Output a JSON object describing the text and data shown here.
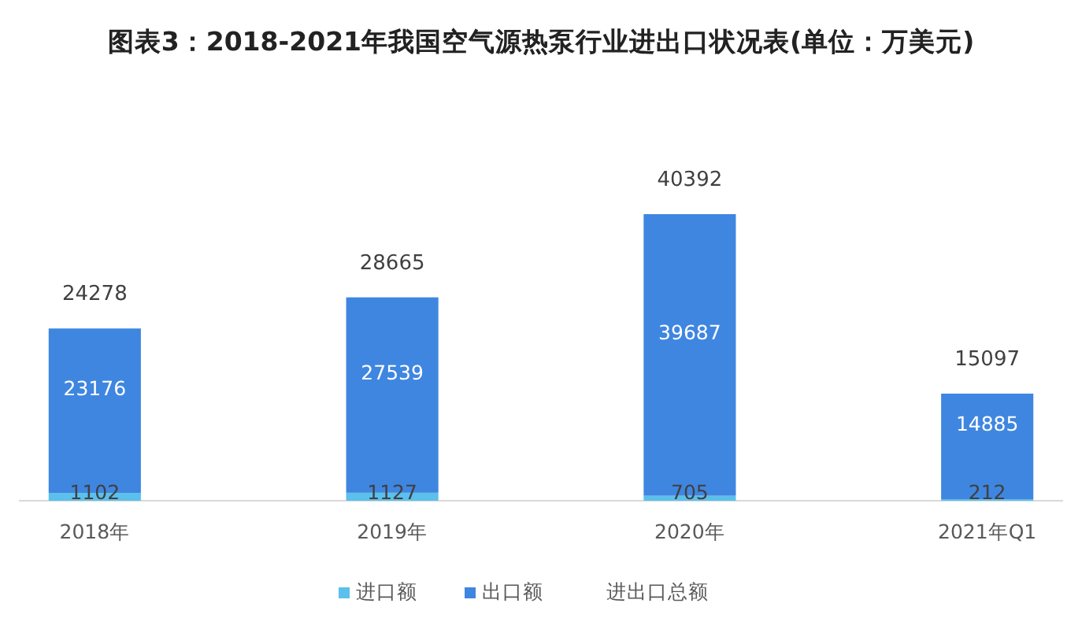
{
  "chart_data": {
    "type": "bar",
    "title": "图表3：2018-2021年我国空气源热泵行业进出口状况表(单位：万美元)",
    "categories": [
      "2018年",
      "2019年",
      "2020年",
      "2021年Q1"
    ],
    "stacked": true,
    "data_labels": true,
    "legend": "bottom",
    "series": [
      {
        "name": "进口额",
        "color": "#5bc0eb",
        "values": [
          1102,
          1127,
          705,
          212
        ]
      },
      {
        "name": "出口额",
        "color": "#3f86e0",
        "values": [
          23176,
          27539,
          39687,
          14885
        ]
      }
    ],
    "totals": [
      "24278",
      "28665",
      "40392",
      "15097"
    ],
    "annotations": [
      "进出口总额"
    ]
  }
}
